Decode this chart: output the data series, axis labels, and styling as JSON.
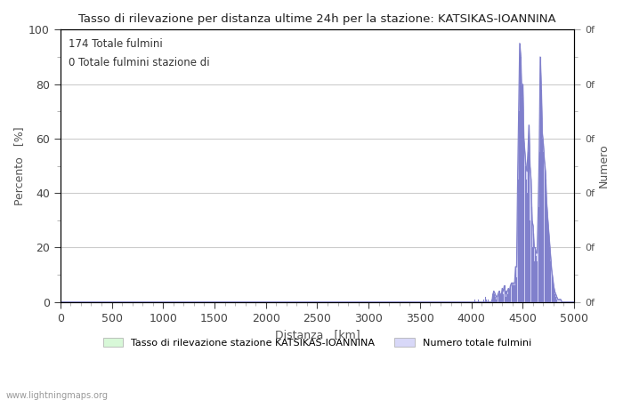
{
  "title": "Tasso di rilevazione per distanza ultime 24h per la stazione: KATSIKAS-IOANNINA",
  "xlabel": "Distanza   [km]",
  "ylabel_left": "Percento   [%]",
  "ylabel_right": "Numero",
  "annotation_line1": "174 Totale fulmini",
  "annotation_line2": "0 Totale fulmini stazione di",
  "legend_label1": "Tasso di rilevazione stazione KATSIKAS-IOANNINA",
  "legend_label2": "Numero totale fulmini",
  "footer": "www.lightningmaps.org",
  "xlim": [
    0,
    5000
  ],
  "ylim_left": [
    0,
    100
  ],
  "ylim_right": [
    0,
    100
  ],
  "xticks": [
    0,
    500,
    1000,
    1500,
    2000,
    2500,
    3000,
    3500,
    4000,
    4500,
    5000
  ],
  "yticks_left": [
    0,
    20,
    40,
    60,
    80,
    100
  ],
  "bg_color": "#ffffff",
  "plot_bg_color": "#ffffff",
  "grid_color": "#cccccc",
  "fill_color_blue": "#d8d8f8",
  "fill_color_green": "#d8f8d8",
  "line_color_blue": "#8080cc",
  "line_color_green": "#88cc88",
  "spike_data": [
    [
      3990,
      0
    ],
    [
      4000,
      0
    ],
    [
      4010,
      0
    ],
    [
      4020,
      0
    ],
    [
      4030,
      1
    ],
    [
      4040,
      0
    ],
    [
      4050,
      0
    ],
    [
      4060,
      1
    ],
    [
      4070,
      0
    ],
    [
      4080,
      0
    ],
    [
      4090,
      0
    ],
    [
      4100,
      0
    ],
    [
      4110,
      0
    ],
    [
      4120,
      1
    ],
    [
      4130,
      2
    ],
    [
      4140,
      1
    ],
    [
      4150,
      0
    ],
    [
      4160,
      1
    ],
    [
      4170,
      0
    ],
    [
      4180,
      0
    ],
    [
      4190,
      1
    ],
    [
      4200,
      3
    ],
    [
      4210,
      4
    ],
    [
      4220,
      3
    ],
    [
      4230,
      2
    ],
    [
      4240,
      1
    ],
    [
      4250,
      2
    ],
    [
      4260,
      3
    ],
    [
      4270,
      4
    ],
    [
      4280,
      3
    ],
    [
      4290,
      2
    ],
    [
      4300,
      5
    ],
    [
      4310,
      3
    ],
    [
      4320,
      6
    ],
    [
      4330,
      2
    ],
    [
      4340,
      4
    ],
    [
      4350,
      3
    ],
    [
      4360,
      5
    ],
    [
      4370,
      4
    ],
    [
      4380,
      6
    ],
    [
      4390,
      7
    ],
    [
      4400,
      6
    ],
    [
      4410,
      7
    ],
    [
      4420,
      6
    ],
    [
      4430,
      13
    ],
    [
      4440,
      9
    ],
    [
      4450,
      45
    ],
    [
      4460,
      70
    ],
    [
      4470,
      95
    ],
    [
      4480,
      90
    ],
    [
      4490,
      75
    ],
    [
      4500,
      80
    ],
    [
      4510,
      60
    ],
    [
      4520,
      50
    ],
    [
      4530,
      45
    ],
    [
      4540,
      40
    ],
    [
      4550,
      55
    ],
    [
      4560,
      65
    ],
    [
      4570,
      30
    ],
    [
      4580,
      35
    ],
    [
      4590,
      20
    ],
    [
      4600,
      25
    ],
    [
      4610,
      15
    ],
    [
      4620,
      20
    ],
    [
      4630,
      17
    ],
    [
      4640,
      15
    ],
    [
      4650,
      35
    ],
    [
      4660,
      55
    ],
    [
      4670,
      90
    ],
    [
      4680,
      78
    ],
    [
      4690,
      60
    ],
    [
      4700,
      55
    ],
    [
      4710,
      50
    ],
    [
      4720,
      45
    ],
    [
      4730,
      35
    ],
    [
      4740,
      30
    ],
    [
      4750,
      25
    ],
    [
      4760,
      20
    ],
    [
      4770,
      15
    ],
    [
      4780,
      10
    ],
    [
      4790,
      8
    ],
    [
      4800,
      5
    ],
    [
      4810,
      3
    ],
    [
      4820,
      2
    ],
    [
      4830,
      1
    ],
    [
      4840,
      0
    ],
    [
      4850,
      0
    ],
    [
      4860,
      0
    ],
    [
      4870,
      0
    ],
    [
      4880,
      0
    ],
    [
      4890,
      0
    ],
    [
      4900,
      0
    ],
    [
      4910,
      0
    ],
    [
      4920,
      0
    ],
    [
      4930,
      0
    ],
    [
      4940,
      0
    ],
    [
      4950,
      0
    ]
  ],
  "fill_envelope": [
    [
      0,
      0
    ],
    [
      4200,
      0
    ],
    [
      4210,
      3
    ],
    [
      4220,
      4
    ],
    [
      4230,
      3
    ],
    [
      4240,
      2
    ],
    [
      4250,
      2
    ],
    [
      4260,
      3
    ],
    [
      4270,
      4
    ],
    [
      4280,
      3
    ],
    [
      4290,
      2
    ],
    [
      4300,
      5
    ],
    [
      4310,
      4
    ],
    [
      4320,
      6
    ],
    [
      4330,
      3
    ],
    [
      4340,
      4
    ],
    [
      4350,
      4
    ],
    [
      4360,
      5
    ],
    [
      4370,
      4
    ],
    [
      4380,
      6
    ],
    [
      4390,
      7
    ],
    [
      4400,
      7
    ],
    [
      4410,
      7
    ],
    [
      4420,
      7
    ],
    [
      4430,
      13
    ],
    [
      4440,
      13
    ],
    [
      4450,
      45
    ],
    [
      4460,
      70
    ],
    [
      4470,
      95
    ],
    [
      4480,
      90
    ],
    [
      4490,
      75
    ],
    [
      4500,
      80
    ],
    [
      4510,
      60
    ],
    [
      4520,
      55
    ],
    [
      4530,
      50
    ],
    [
      4540,
      48
    ],
    [
      4550,
      55
    ],
    [
      4560,
      65
    ],
    [
      4570,
      50
    ],
    [
      4580,
      45
    ],
    [
      4590,
      30
    ],
    [
      4600,
      28
    ],
    [
      4610,
      20
    ],
    [
      4620,
      20
    ],
    [
      4630,
      18
    ],
    [
      4640,
      18
    ],
    [
      4650,
      35
    ],
    [
      4660,
      55
    ],
    [
      4670,
      90
    ],
    [
      4680,
      78
    ],
    [
      4690,
      62
    ],
    [
      4700,
      58
    ],
    [
      4710,
      52
    ],
    [
      4720,
      48
    ],
    [
      4730,
      38
    ],
    [
      4740,
      32
    ],
    [
      4750,
      27
    ],
    [
      4760,
      22
    ],
    [
      4770,
      17
    ],
    [
      4780,
      12
    ],
    [
      4790,
      9
    ],
    [
      4800,
      6
    ],
    [
      4810,
      4
    ],
    [
      4820,
      3
    ],
    [
      4830,
      2
    ],
    [
      4840,
      1
    ],
    [
      4850,
      1
    ],
    [
      4860,
      1
    ],
    [
      4870,
      1
    ],
    [
      4880,
      0
    ],
    [
      4890,
      0
    ],
    [
      4900,
      0
    ],
    [
      5000,
      0
    ]
  ]
}
